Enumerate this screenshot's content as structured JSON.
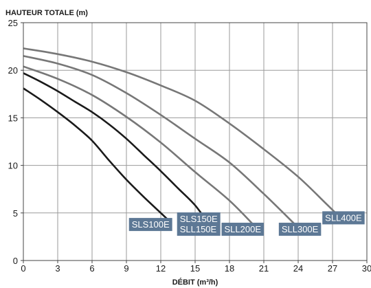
{
  "chart_data": {
    "type": "line",
    "ylabel": "HAUTEUR TOTALE (m)",
    "xlabel": "DÉBIT (m³/h)",
    "xlim": [
      0,
      30
    ],
    "ylim": [
      0,
      25
    ],
    "xticks": [
      0,
      3,
      6,
      9,
      12,
      15,
      18,
      21,
      24,
      27,
      30
    ],
    "yticks": [
      0,
      5,
      10,
      15,
      20,
      25
    ],
    "grid": true,
    "colors": {
      "dark": "#1a1a1a",
      "grey": "#777777",
      "label_bg": "#5d7895"
    },
    "series": [
      {
        "id": "sls100e",
        "color": "dark",
        "points": [
          [
            0,
            18.1
          ],
          [
            1.5,
            16.9
          ],
          [
            3,
            15.6
          ],
          [
            4.5,
            14.2
          ],
          [
            6,
            12.6
          ],
          [
            7.5,
            10.5
          ],
          [
            9,
            8.5
          ],
          [
            10.5,
            6.7
          ],
          [
            12,
            5.0
          ],
          [
            12.8,
            4.1
          ]
        ]
      },
      {
        "id": "sls150e",
        "color": "dark",
        "points": [
          [
            0,
            19.7
          ],
          [
            1.5,
            18.8
          ],
          [
            3,
            17.8
          ],
          [
            4.5,
            16.7
          ],
          [
            6,
            15.6
          ],
          [
            7.5,
            14.3
          ],
          [
            9,
            12.8
          ],
          [
            10.5,
            11.1
          ],
          [
            12,
            9.4
          ],
          [
            13.5,
            7.6
          ],
          [
            15,
            5.8
          ],
          [
            16.4,
            3.5
          ]
        ]
      },
      {
        "id": "sll200e",
        "color": "grey",
        "points": [
          [
            0,
            20.4
          ],
          [
            3,
            19.1
          ],
          [
            6,
            17.4
          ],
          [
            9,
            15.1
          ],
          [
            12,
            12.4
          ],
          [
            15,
            9.3
          ],
          [
            18,
            6.3
          ],
          [
            20.3,
            3.5
          ]
        ]
      },
      {
        "id": "sll300e",
        "color": "grey",
        "points": [
          [
            0,
            21.5
          ],
          [
            3,
            20.7
          ],
          [
            6,
            19.5
          ],
          [
            9,
            17.6
          ],
          [
            12,
            15.3
          ],
          [
            15,
            12.8
          ],
          [
            18,
            10.3
          ],
          [
            21,
            7.0
          ],
          [
            23.8,
            3.7
          ]
        ]
      },
      {
        "id": "sll400e",
        "color": "grey",
        "points": [
          [
            0,
            22.3
          ],
          [
            3,
            21.7
          ],
          [
            6,
            20.9
          ],
          [
            9,
            19.8
          ],
          [
            12,
            18.4
          ],
          [
            15,
            16.8
          ],
          [
            18,
            14.4
          ],
          [
            21,
            11.7
          ],
          [
            24,
            8.8
          ],
          [
            26.5,
            5.9
          ],
          [
            27.6,
            4.6
          ]
        ]
      }
    ],
    "labels": [
      {
        "lines": [
          "SLS100E"
        ],
        "anchor_x": 13.0,
        "anchor_y": 3.1
      },
      {
        "lines": [
          "SLS150E",
          "SLL150E"
        ],
        "anchor_x": 17.2,
        "anchor_y": 2.6
      },
      {
        "lines": [
          "SLL200E"
        ],
        "anchor_x": 21.0,
        "anchor_y": 2.6
      },
      {
        "lines": [
          "SLL300E"
        ],
        "anchor_x": 26.0,
        "anchor_y": 2.6
      },
      {
        "lines": [
          "SLL400E"
        ],
        "anchor_x": 29.8,
        "anchor_y": 3.8
      }
    ]
  }
}
